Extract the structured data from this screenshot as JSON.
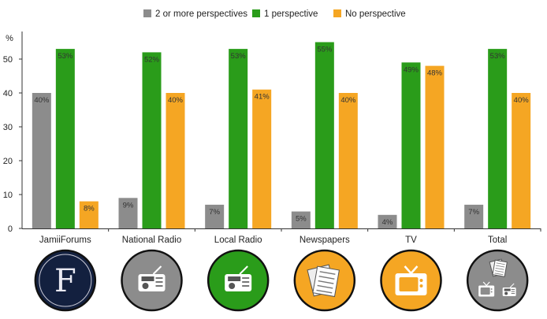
{
  "chart_data": {
    "type": "bar",
    "ylabel": "%",
    "ylim": [
      0,
      58
    ],
    "yticks": [
      0,
      10,
      20,
      30,
      40,
      50
    ],
    "grid": false,
    "legend_position": "top-center",
    "categories": [
      "JamiiForums",
      "National Radio",
      "Local Radio",
      "Newspapers",
      "TV",
      "Total"
    ],
    "series": [
      {
        "name": "2 or more perspectives",
        "color": "#8c8c8c",
        "values": [
          40,
          9,
          7,
          5,
          4,
          7
        ],
        "labels": [
          "40%",
          "9%",
          "7%",
          "5%",
          "4%",
          "7%"
        ]
      },
      {
        "name": "1 perspective",
        "color": "#2a9c1a",
        "values": [
          53,
          52,
          53,
          55,
          49,
          53
        ],
        "labels": [
          "53%",
          "52%",
          "53%",
          "55%",
          "49%",
          "53%"
        ]
      },
      {
        "name": "No perspective",
        "color": "#f5a623",
        "values": [
          8,
          40,
          41,
          40,
          48,
          40
        ],
        "labels": [
          "8%",
          "40%",
          "41%",
          "40%",
          "48%",
          "40%"
        ]
      }
    ],
    "category_icons": [
      {
        "name": "jamiiforums-logo-icon",
        "bg": "#13203f",
        "letter": "F"
      },
      {
        "name": "national-radio-icon",
        "bg": "#8c8c8c"
      },
      {
        "name": "local-radio-icon",
        "bg": "#2a9c1a"
      },
      {
        "name": "newspapers-icon",
        "bg": "#f5a623"
      },
      {
        "name": "tv-icon",
        "bg": "#f5a623"
      },
      {
        "name": "total-media-icon",
        "bg": "#8c8c8c"
      }
    ]
  }
}
